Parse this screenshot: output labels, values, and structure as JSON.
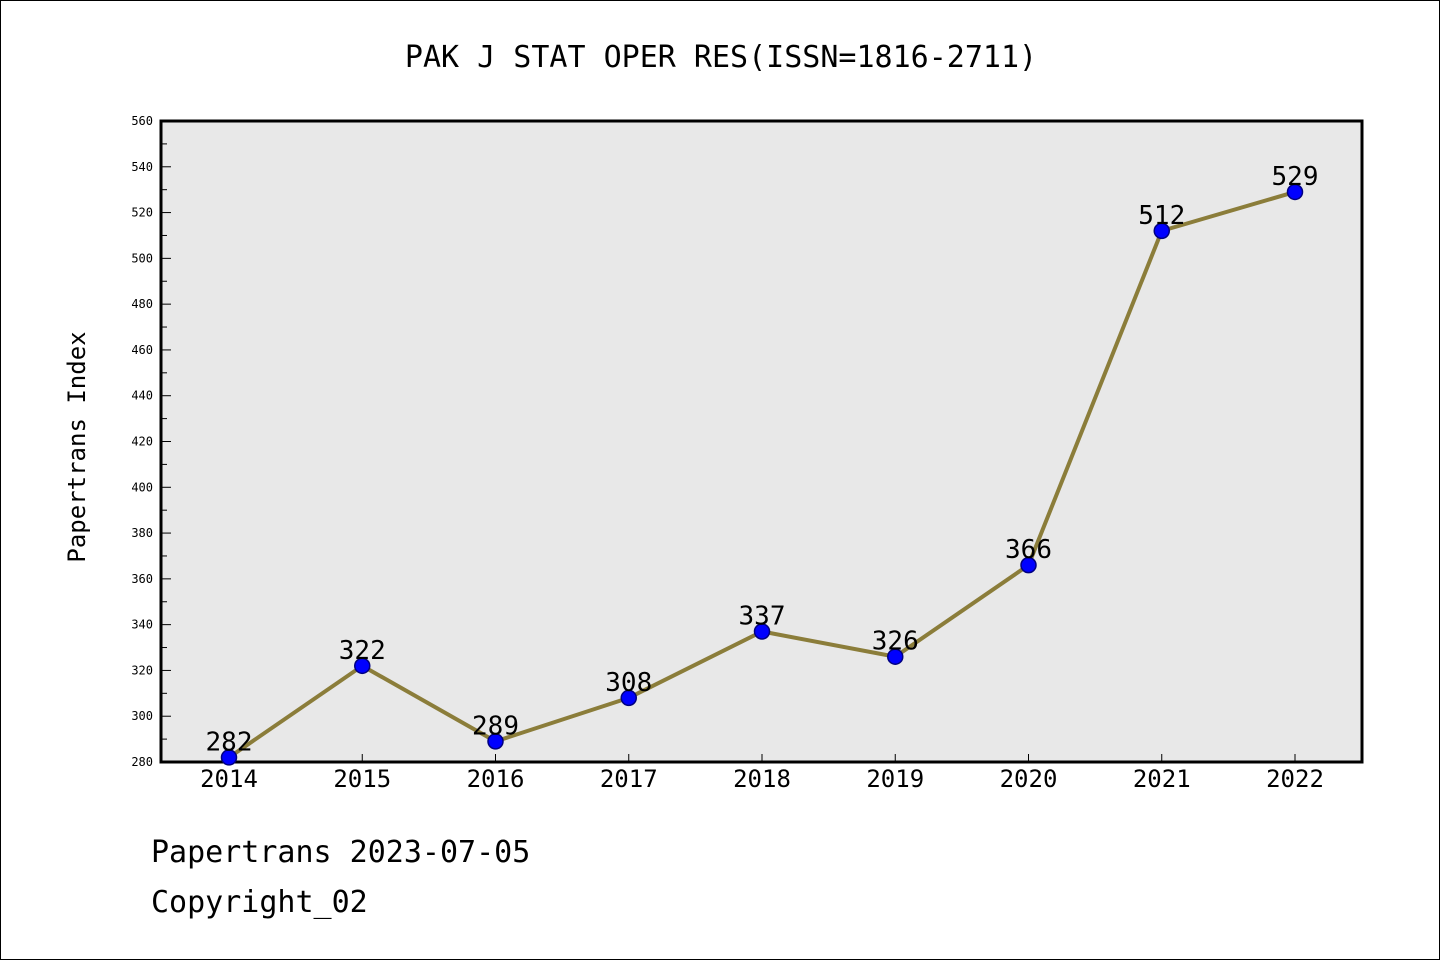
{
  "chart_data": {
    "type": "line",
    "title": "PAK J STAT OPER RES(ISSN=1816-2711)",
    "xlabel": "",
    "ylabel": "Papertrans Index",
    "x": [
      "2014",
      "2015",
      "2016",
      "2017",
      "2018",
      "2019",
      "2020",
      "2021",
      "2022"
    ],
    "values": [
      282,
      322,
      289,
      308,
      337,
      326,
      366,
      512,
      529
    ],
    "data_labels": [
      "282",
      "322",
      "289",
      "308",
      "337",
      "326",
      "366",
      "512",
      "529"
    ],
    "ylim": [
      280,
      560
    ],
    "yticks": [
      280,
      300,
      320,
      340,
      360,
      380,
      400,
      420,
      440,
      460,
      480,
      500,
      520,
      540,
      560
    ],
    "ytick_labels": [
      "280",
      "300",
      "320",
      "340",
      "360",
      "380",
      "400",
      "420",
      "440",
      "460",
      "480",
      "500",
      "520",
      "540",
      "560"
    ],
    "grid": false,
    "colors": {
      "plot_background": "#e8e8e8",
      "line": "#8b7d3a",
      "marker_fill": "#0000ff",
      "marker_edge": "#000080",
      "axis": "#000000"
    }
  },
  "footer": {
    "line1": "Papertrans 2023-07-05",
    "line2": "Copyright_02"
  }
}
